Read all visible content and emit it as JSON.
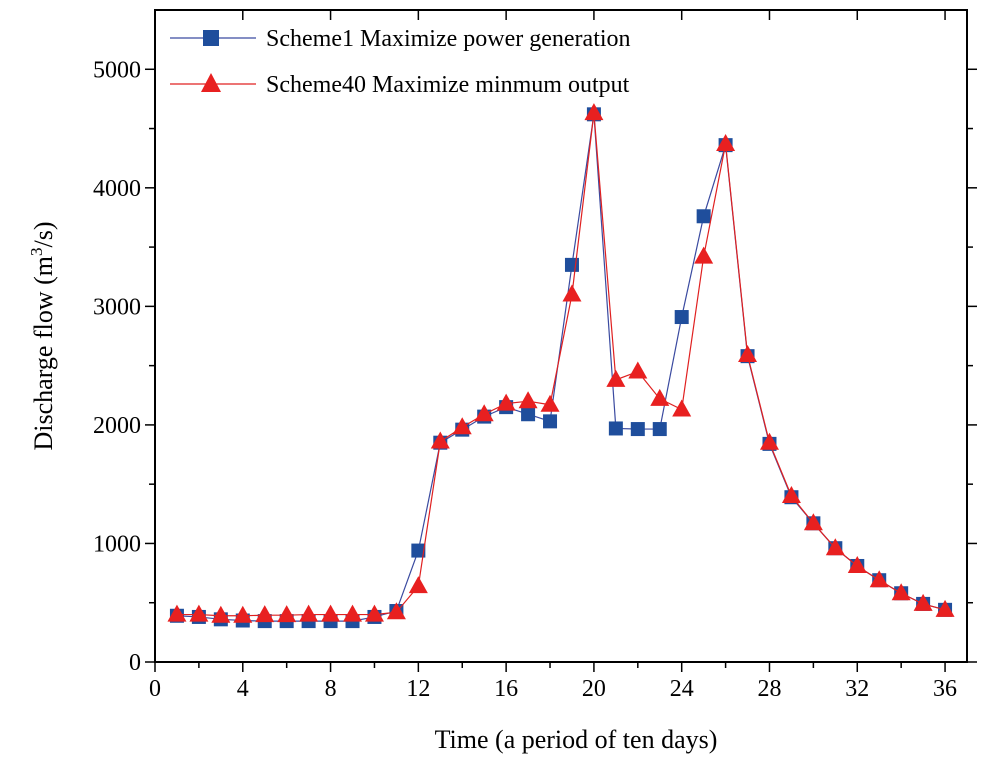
{
  "chart_data": {
    "type": "line",
    "title": "",
    "xlabel": "Time (a period of ten days)",
    "ylabel_main": "Discharge flow (m",
    "ylabel_sup": "3",
    "ylabel_tail": "/s)",
    "xlim": [
      0,
      37
    ],
    "ylim": [
      0,
      5500
    ],
    "xticks": [
      0,
      4,
      8,
      12,
      16,
      20,
      24,
      28,
      32,
      36
    ],
    "xtick_labels": [
      "0",
      "4",
      "8",
      "12",
      "16",
      "20",
      "24",
      "28",
      "32",
      "36"
    ],
    "yticks": [
      0,
      1000,
      2000,
      3000,
      4000,
      5000
    ],
    "ytick_labels": [
      "0",
      "1000",
      "2000",
      "3000",
      "4000",
      "5000"
    ],
    "legend_position": "top-left",
    "x": [
      1,
      2,
      3,
      4,
      5,
      6,
      7,
      8,
      9,
      10,
      11,
      12,
      13,
      14,
      15,
      16,
      17,
      18,
      19,
      20,
      21,
      22,
      23,
      24,
      25,
      26,
      27,
      28,
      29,
      30,
      31,
      32,
      33,
      34,
      35,
      36
    ],
    "series": [
      {
        "name": "Scheme1 Maximize power generation",
        "marker": "square",
        "line_color": "#3a4aa0",
        "marker_color": "#1f4e9c",
        "values": [
          390,
          380,
          360,
          350,
          345,
          345,
          345,
          345,
          345,
          380,
          430,
          940,
          1850,
          1960,
          2070,
          2150,
          2090,
          2030,
          3350,
          4620,
          1970,
          1965,
          1965,
          2910,
          3760,
          4360,
          2580,
          1840,
          1390,
          1170,
          960,
          810,
          690,
          580,
          490,
          440
        ]
      },
      {
        "name": "Scheme40 Maximize minmum output",
        "marker": "triangle",
        "line_color": "#e02020",
        "marker_color": "#e82020",
        "values": [
          400,
          400,
          390,
          390,
          395,
          395,
          400,
          400,
          400,
          400,
          420,
          640,
          1860,
          1980,
          2090,
          2180,
          2200,
          2170,
          3100,
          4630,
          2380,
          2450,
          2220,
          2130,
          3420,
          4370,
          2590,
          1850,
          1400,
          1170,
          960,
          810,
          690,
          580,
          490,
          440
        ]
      }
    ]
  }
}
